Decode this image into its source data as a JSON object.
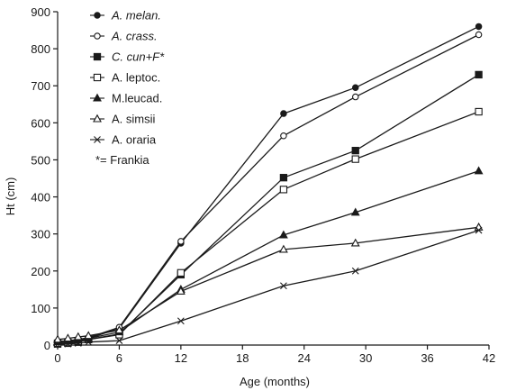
{
  "chart_data": {
    "type": "line",
    "xlabel": "Age (months)",
    "ylabel": "Ht (cm)",
    "xlim": [
      0,
      42
    ],
    "ylim": [
      0,
      900
    ],
    "xticks": [
      0,
      6,
      12,
      18,
      24,
      30,
      36,
      42
    ],
    "yticks": [
      0,
      100,
      200,
      300,
      400,
      500,
      600,
      700,
      800,
      900
    ],
    "grid": false,
    "legend_position": "top-left",
    "footnote": "*= Frankia",
    "series": [
      {
        "name": "A. melan.",
        "italic": true,
        "marker": "filled-circle",
        "x": [
          0,
          1,
          2,
          3,
          6,
          12,
          22,
          29,
          41
        ],
        "y": [
          5,
          7,
          10,
          18,
          45,
          275,
          625,
          695,
          860
        ]
      },
      {
        "name": "A. crass.",
        "italic": true,
        "marker": "open-circle",
        "x": [
          0,
          1,
          2,
          3,
          6,
          12,
          22,
          29,
          41
        ],
        "y": [
          10,
          12,
          15,
          20,
          48,
          280,
          565,
          670,
          838
        ]
      },
      {
        "name": "C. cun+F*",
        "italic": true,
        "marker": "filled-square",
        "x": [
          0,
          1,
          2,
          3,
          6,
          12,
          22,
          29,
          41
        ],
        "y": [
          3,
          5,
          8,
          15,
          30,
          190,
          452,
          525,
          730
        ]
      },
      {
        "name": "A. leptoc.",
        "italic": false,
        "marker": "open-square",
        "x": [
          0,
          1,
          2,
          3,
          6,
          12,
          22,
          29,
          41
        ],
        "y": [
          5,
          7,
          10,
          15,
          28,
          195,
          420,
          502,
          630
        ]
      },
      {
        "name": "M.leucad.",
        "italic": false,
        "marker": "filled-triangle",
        "x": [
          0,
          1,
          2,
          3,
          6,
          12,
          22,
          29,
          41
        ],
        "y": [
          8,
          10,
          13,
          18,
          35,
          150,
          297,
          358,
          470
        ]
      },
      {
        "name": "A. simsii",
        "italic": false,
        "marker": "open-triangle",
        "x": [
          0,
          1,
          2,
          3,
          6,
          12,
          22,
          29,
          41
        ],
        "y": [
          15,
          18,
          22,
          25,
          40,
          145,
          258,
          275,
          318
        ]
      },
      {
        "name": "A. oraria",
        "italic": false,
        "marker": "x",
        "x": [
          0,
          1,
          2,
          3,
          6,
          12,
          22,
          29,
          41
        ],
        "y": [
          2,
          3,
          5,
          8,
          12,
          65,
          160,
          200,
          310
        ]
      }
    ]
  }
}
